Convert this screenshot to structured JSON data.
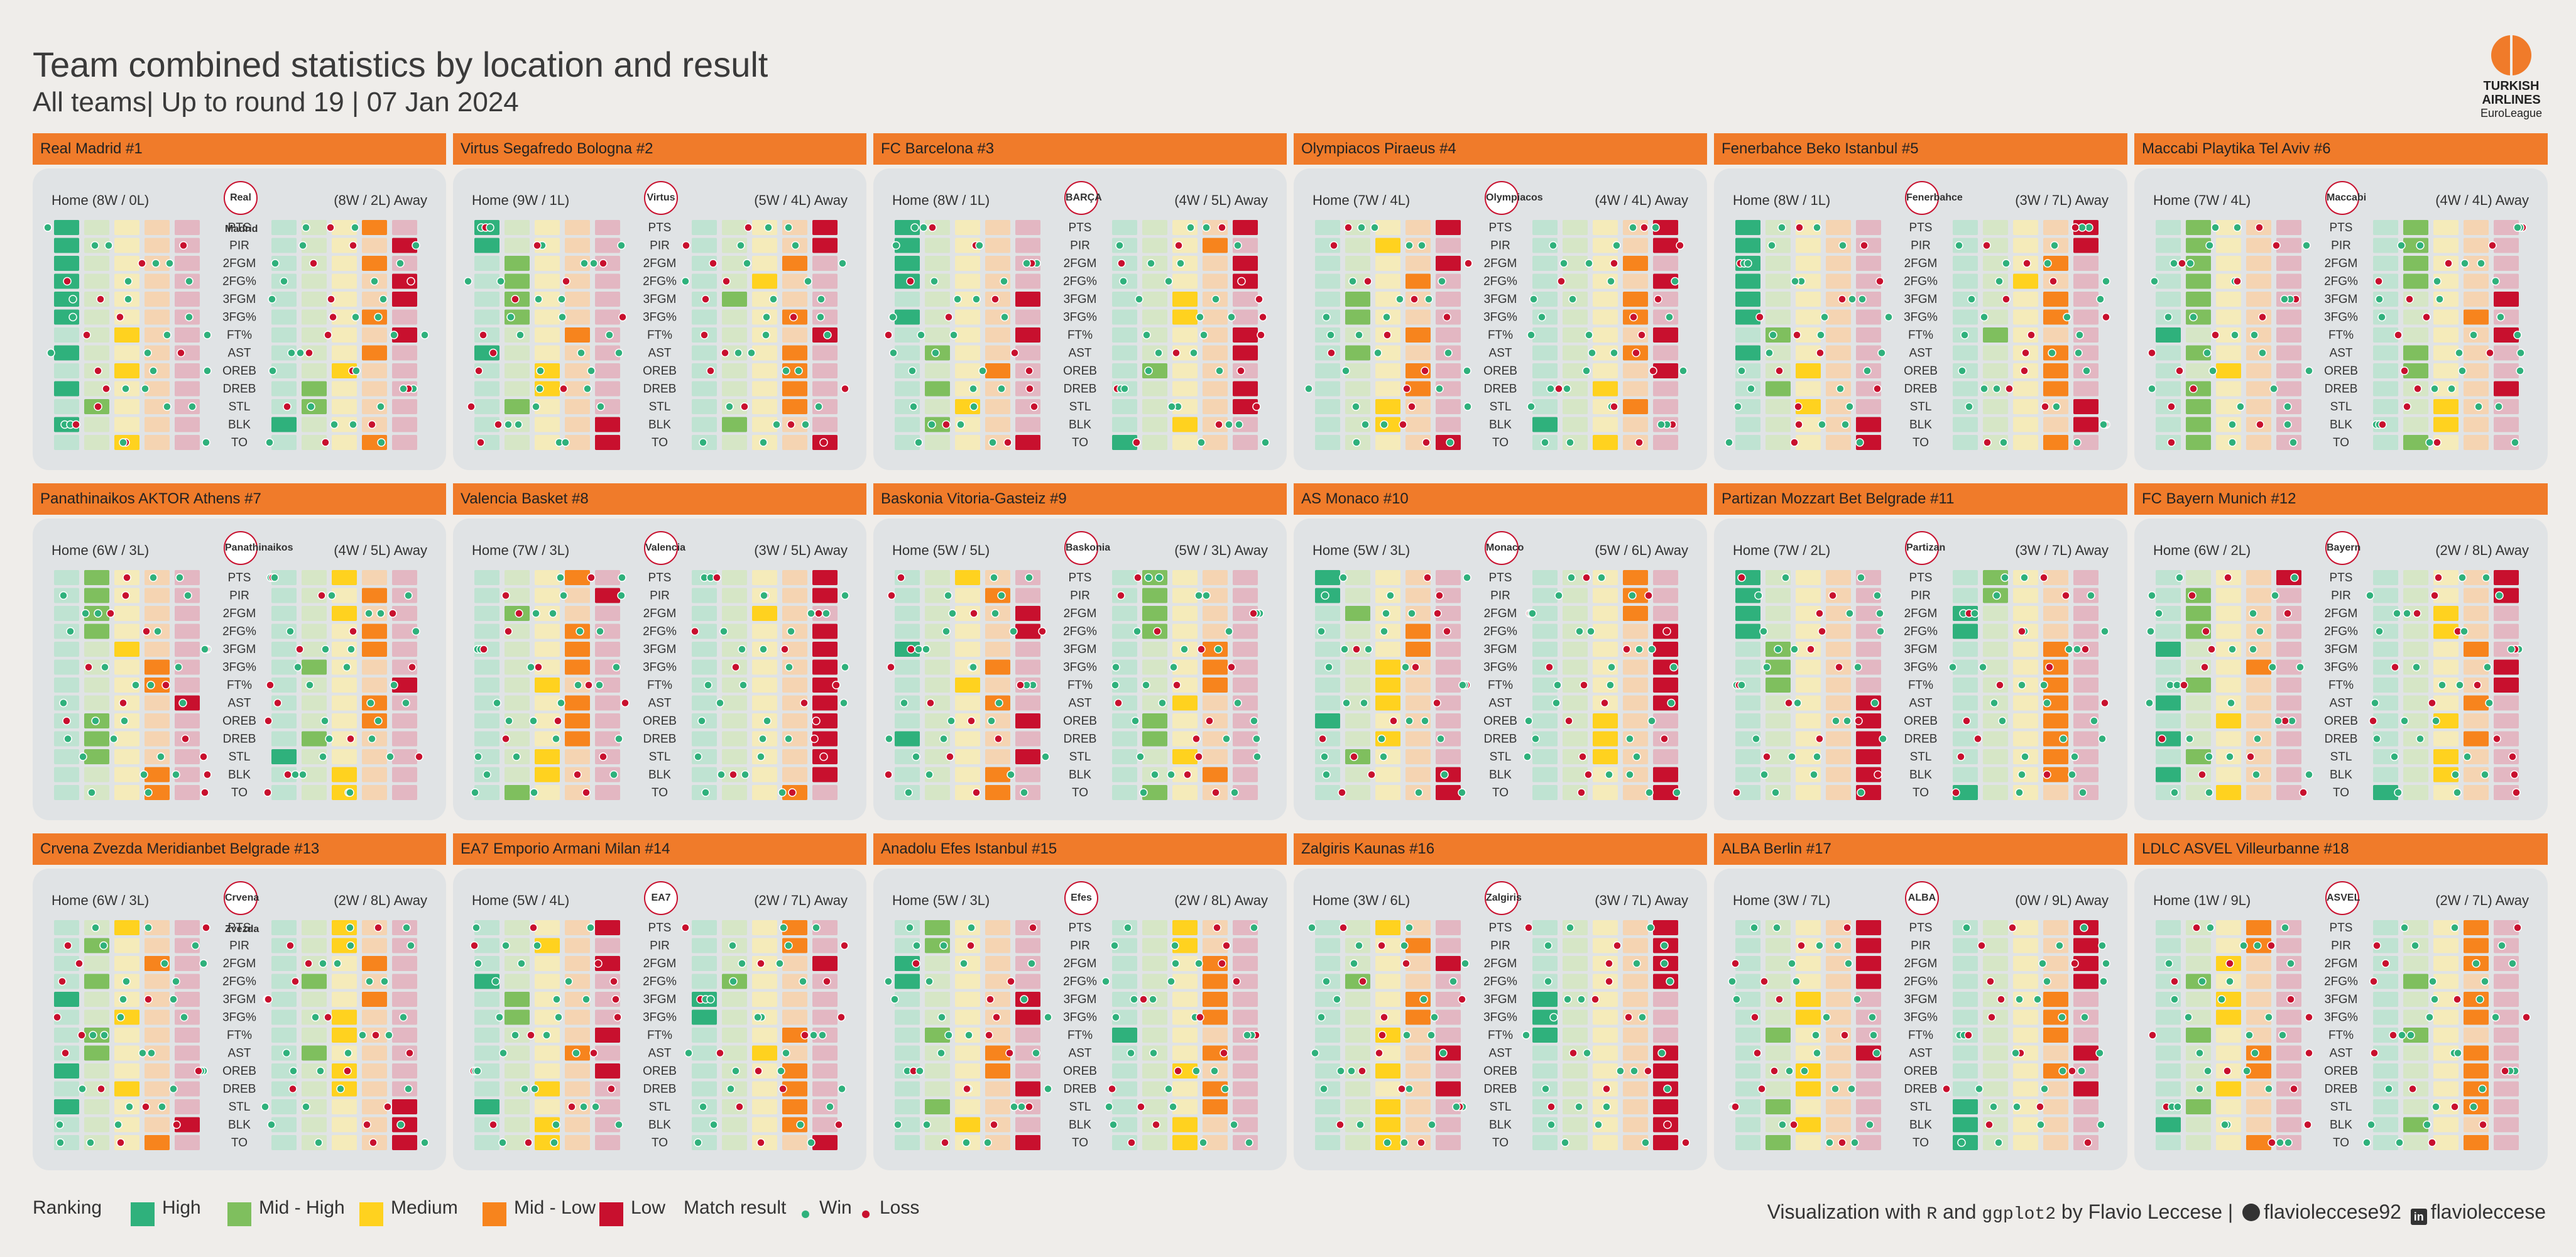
{
  "header": {
    "title": "Team combined statistics by location and result",
    "subtitle": "All teams| Up to round 19 | 07 Jan 2024",
    "logo_lines": [
      "TURKISH",
      "AIRLINES",
      "EuroLeague"
    ]
  },
  "colors": {
    "High": "#2fb17c",
    "Mid - High": "#7fbf5e",
    "Medium": "#ffd21f",
    "Mid - Low": "#f7841d",
    "Low": "#c8102e",
    "win_dot": "#2fb17c",
    "loss_dot": "#c8102e",
    "panel_header": "#f07b2a"
  },
  "chart_data": {
    "type": "heatmap",
    "stats": [
      "PTS",
      "PIR",
      "2FGM",
      "2FG%",
      "3FGM",
      "3FG%",
      "FT%",
      "AST",
      "OREB",
      "DREB",
      "STL",
      "BLK",
      "TO"
    ],
    "rank_levels": [
      "High",
      "Mid - High",
      "Medium",
      "Mid - Low",
      "Low"
    ],
    "teams": [
      {
        "name": "Real Madrid #1",
        "logo": "Real Madrid",
        "home_label": "Home (8W / 0L)",
        "away_label": "(8W / 2L) Away",
        "home": [
          1,
          1,
          1,
          1,
          1,
          1,
          3,
          1,
          3,
          1,
          2,
          1,
          3
        ],
        "away": [
          4,
          5,
          4,
          5,
          5,
          4,
          5,
          4,
          3,
          2,
          2,
          1,
          4
        ]
      },
      {
        "name": "Virtus Segafredo Bologna #2",
        "logo": "Virtus",
        "home_label": "Home (9W / 1L)",
        "away_label": "(5W / 4L) Away",
        "home": [
          1,
          1,
          2,
          2,
          2,
          2,
          4,
          1,
          3,
          3,
          2,
          5,
          5
        ],
        "away": [
          5,
          5,
          4,
          3,
          2,
          4,
          5,
          4,
          4,
          4,
          4,
          2,
          5
        ]
      },
      {
        "name": "FC Barcelona #3",
        "logo": "BARÇA",
        "home_label": "Home (8W / 1L)",
        "away_label": "(4W / 5L) Away",
        "home": [
          1,
          1,
          1,
          1,
          5,
          1,
          5,
          2,
          4,
          2,
          3,
          2,
          5
        ],
        "away": [
          5,
          4,
          5,
          5,
          3,
          3,
          5,
          5,
          2,
          5,
          5,
          3,
          1
        ]
      },
      {
        "name": "Olympiacos Piraeus #4",
        "logo": "Olympiacos",
        "home_label": "Home (7W / 4L)",
        "away_label": "(4W / 4L) Away",
        "home": [
          5,
          3,
          5,
          4,
          2,
          2,
          4,
          2,
          4,
          4,
          3,
          3,
          5
        ],
        "away": [
          5,
          5,
          4,
          5,
          4,
          4,
          5,
          4,
          5,
          3,
          4,
          1,
          3
        ]
      },
      {
        "name": "Fenerbahce Beko Istanbul #5",
        "logo": "Fenerbahce",
        "home_label": "Home (8W / 1L)",
        "away_label": "(3W / 7L) Away",
        "home": [
          1,
          1,
          1,
          1,
          1,
          1,
          2,
          1,
          3,
          2,
          3,
          5,
          5
        ],
        "away": [
          5,
          5,
          4,
          3,
          4,
          4,
          2,
          4,
          4,
          4,
          5,
          5,
          4
        ]
      },
      {
        "name": "Maccabi Playtika Tel Aviv #6",
        "logo": "Maccabi",
        "home_label": "Home (7W / 4L)",
        "away_label": "(4W / 4L) Away",
        "home": [
          2,
          2,
          2,
          2,
          2,
          2,
          1,
          2,
          3,
          2,
          2,
          2,
          2
        ],
        "away": [
          2,
          2,
          2,
          2,
          5,
          4,
          5,
          2,
          2,
          5,
          3,
          3,
          2
        ]
      },
      {
        "name": "Panathinaikos AKTOR Athens #7",
        "logo": "Panathinaikos",
        "home_label": "Home (6W / 3L)",
        "away_label": "(4W / 5L) Away",
        "home": [
          2,
          2,
          2,
          2,
          3,
          4,
          4,
          5,
          2,
          2,
          2,
          4,
          4
        ],
        "away": [
          3,
          4,
          3,
          4,
          4,
          2,
          5,
          4,
          4,
          2,
          1,
          3,
          3
        ]
      },
      {
        "name": "Valencia Basket #8",
        "logo": "Valencia",
        "home_label": "Home (7W / 3L)",
        "away_label": "(3W / 5L) Away",
        "home": [
          4,
          5,
          2,
          4,
          4,
          4,
          3,
          4,
          4,
          4,
          3,
          3,
          2
        ],
        "away": [
          5,
          5,
          3,
          5,
          5,
          5,
          5,
          5,
          5,
          5,
          5,
          5,
          4
        ]
      },
      {
        "name": "Baskonia Vitoria-Gasteiz #9",
        "logo": "Baskonia",
        "home_label": "Home (5W / 5L)",
        "away_label": "(5W / 3L) Away",
        "home": [
          3,
          4,
          5,
          5,
          1,
          4,
          3,
          4,
          5,
          1,
          5,
          4,
          4
        ],
        "away": [
          2,
          2,
          2,
          2,
          4,
          4,
          4,
          3,
          2,
          2,
          3,
          4,
          2
        ]
      },
      {
        "name": "AS Monaco #10",
        "logo": "Monaco",
        "home_label": "Home (5W / 3L)",
        "away_label": "(5W / 6L) Away",
        "home": [
          1,
          1,
          2,
          4,
          4,
          3,
          3,
          3,
          1,
          3,
          2,
          5,
          5
        ],
        "away": [
          4,
          4,
          4,
          5,
          5,
          5,
          5,
          5,
          3,
          3,
          3,
          5,
          5
        ]
      },
      {
        "name": "Partizan Mozzart Bet Belgrade #11",
        "logo": "Partizan",
        "home_label": "Home (7W / 2L)",
        "away_label": "(3W / 7L) Away",
        "home": [
          1,
          1,
          1,
          1,
          2,
          2,
          2,
          5,
          5,
          5,
          5,
          5,
          5
        ],
        "away": [
          2,
          2,
          1,
          1,
          4,
          4,
          4,
          4,
          4,
          4,
          4,
          4,
          1
        ]
      },
      {
        "name": "FC Bayern Munich #12",
        "logo": "Bayern",
        "home_label": "Home (6W / 2L)",
        "away_label": "(2W / 8L) Away",
        "home": [
          5,
          2,
          2,
          2,
          1,
          4,
          2,
          1,
          3,
          1,
          2,
          1,
          3
        ],
        "away": [
          5,
          5,
          3,
          3,
          4,
          5,
          5,
          4,
          3,
          4,
          3,
          3,
          1
        ]
      },
      {
        "name": "Crvena Zvezda Meridianbet Belgrade #13",
        "logo": "Crvena Zvezda",
        "home_label": "Home (6W / 3L)",
        "away_label": "(2W / 8L) Away",
        "home": [
          3,
          2,
          4,
          2,
          1,
          3,
          2,
          2,
          1,
          3,
          1,
          5,
          4
        ],
        "away": [
          3,
          3,
          4,
          2,
          4,
          3,
          3,
          2,
          3,
          3,
          5,
          5,
          5
        ]
      },
      {
        "name": "EA7 Emporio Armani Milan #14",
        "logo": "EA7",
        "home_label": "Home (5W / 4L)",
        "away_label": "(2W / 7L) Away",
        "home": [
          5,
          3,
          5,
          1,
          2,
          2,
          5,
          4,
          5,
          3,
          1,
          3,
          3
        ],
        "away": [
          4,
          4,
          5,
          2,
          1,
          1,
          4,
          3,
          4,
          4,
          4,
          4,
          5
        ]
      },
      {
        "name": "Anadolu Efes Istanbul #15",
        "logo": "Efes",
        "home_label": "Home (5W / 3L)",
        "away_label": "(2W / 8L) Away",
        "home": [
          2,
          2,
          1,
          1,
          5,
          5,
          2,
          4,
          4,
          5,
          2,
          3,
          5
        ],
        "away": [
          3,
          3,
          4,
          4,
          4,
          4,
          1,
          4,
          3,
          4,
          4,
          3,
          3
        ]
      },
      {
        "name": "Zalgiris Kaunas #16",
        "logo": "Zalgiris",
        "home_label": "Home (3W / 6L)",
        "away_label": "(3W / 7L) Away",
        "home": [
          3,
          4,
          5,
          2,
          4,
          4,
          3,
          5,
          3,
          5,
          3,
          3,
          3
        ],
        "away": [
          5,
          5,
          5,
          5,
          1,
          1,
          1,
          5,
          5,
          5,
          5,
          5,
          5
        ]
      },
      {
        "name": "ALBA Berlin #17",
        "logo": "ALBA",
        "home_label": "Home (3W / 7L)",
        "away_label": "(0W / 9L) Away",
        "home": [
          5,
          5,
          5,
          5,
          3,
          3,
          2,
          5,
          3,
          3,
          2,
          3,
          2
        ],
        "away": [
          5,
          5,
          5,
          5,
          4,
          4,
          4,
          5,
          4,
          5,
          1,
          1,
          1
        ]
      },
      {
        "name": "LDLC ASVEL Villeurbanne #18",
        "logo": "ASVEL",
        "home_label": "Home (1W / 9L)",
        "away_label": "(2W / 7L) Away",
        "home": [
          4,
          4,
          3,
          2,
          3,
          3,
          2,
          4,
          4,
          3,
          2,
          1,
          4
        ],
        "away": [
          4,
          4,
          4,
          2,
          4,
          4,
          2,
          4,
          4,
          4,
          4,
          2,
          4
        ]
      }
    ]
  },
  "legend": {
    "ranking_label": "Ranking",
    "levels": [
      {
        "label": "High",
        "color": "#2fb17c"
      },
      {
        "label": "Mid - High",
        "color": "#7fbf5e"
      },
      {
        "label": "Medium",
        "color": "#ffd21f"
      },
      {
        "label": "Mid - Low",
        "color": "#f7841d"
      },
      {
        "label": "Low",
        "color": "#c8102e"
      }
    ],
    "result_label": "Match result",
    "win_label": "Win",
    "loss_label": "Loss"
  },
  "credit": {
    "pre": "Visualization  with ",
    "r": "R",
    "and": " and ",
    "ggplot": "ggplot2",
    "by": " by Flavio Leccese | ",
    "github": "flavioleccese92",
    "linkedin": "flavioleccese"
  }
}
